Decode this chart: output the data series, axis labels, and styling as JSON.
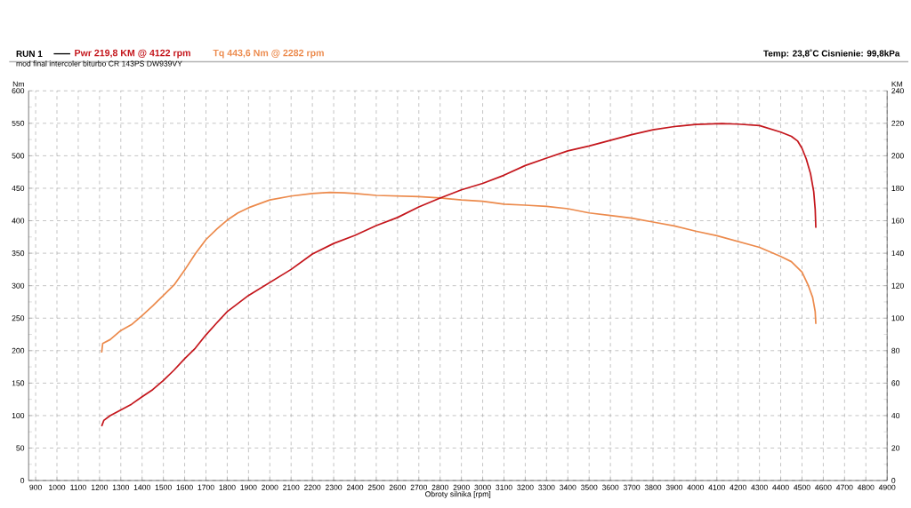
{
  "chart_data": {
    "type": "line",
    "subtitle": "mod final intercoler biturbo CR 143PS DW939VY",
    "annotations": [
      "RUN 1",
      "Temp: 23,8˚C   Cisnienie: 99,8kPa"
    ],
    "xlabel": "Obroty silnika [rpm]",
    "ylabel": "Nm",
    "y2label": "KM",
    "xlim": [
      867,
      4900
    ],
    "xticks": [
      900,
      1000,
      1100,
      1200,
      1300,
      1400,
      1500,
      1600,
      1700,
      1800,
      1900,
      2000,
      2100,
      2200,
      2300,
      2400,
      2500,
      2600,
      2700,
      2800,
      2900,
      3000,
      3100,
      3200,
      3300,
      3400,
      3500,
      3600,
      3700,
      3800,
      3900,
      4000,
      4100,
      4200,
      4300,
      4400,
      4500,
      4600,
      4700,
      4800,
      4900
    ],
    "ylim": [
      0,
      600
    ],
    "yticks": [
      0,
      50,
      100,
      150,
      200,
      250,
      300,
      350,
      400,
      450,
      500,
      550,
      600
    ],
    "y2lim": [
      0,
      240
    ],
    "y2ticks": [
      0,
      20,
      40,
      60,
      80,
      100,
      120,
      140,
      160,
      180,
      200,
      220,
      240
    ],
    "grid": true,
    "marker": "none",
    "series": [
      {
        "name": "Pwr  219,8 KM @ 4122 rpm",
        "color": "#c4161c",
        "axis": "y2",
        "x": [
          1210,
          1220,
          1250,
          1300,
          1350,
          1400,
          1450,
          1500,
          1550,
          1600,
          1650,
          1700,
          1750,
          1800,
          1900,
          2000,
          2100,
          2200,
          2300,
          2400,
          2500,
          2600,
          2700,
          2800,
          2900,
          3000,
          3100,
          3200,
          3300,
          3400,
          3500,
          3600,
          3700,
          3800,
          3900,
          4000,
          4122,
          4200,
          4300,
          4400,
          4450,
          4480,
          4500,
          4520,
          4540,
          4555,
          4562,
          4565
        ],
        "values": [
          33.5,
          37,
          40,
          43.5,
          47,
          51.6,
          56,
          61.6,
          68,
          75,
          81.5,
          89.7,
          97,
          104,
          114,
          122,
          130,
          139.5,
          146,
          151,
          157,
          162,
          168.5,
          174,
          179,
          183,
          188,
          194,
          198.6,
          203,
          206,
          209.5,
          213,
          216,
          218,
          219.3,
          219.8,
          219.5,
          218.6,
          214.6,
          212,
          209,
          204.6,
          198,
          189,
          178,
          167,
          155.6
        ]
      },
      {
        "name": "Tq 443,6 Nm @ 2282 rpm",
        "color": "#ec8a4c",
        "x": [
          1210,
          1215,
          1250,
          1300,
          1350,
          1400,
          1450,
          1500,
          1550,
          1600,
          1650,
          1700,
          1750,
          1800,
          1850,
          1900,
          2000,
          2100,
          2200,
          2282,
          2350,
          2400,
          2500,
          2600,
          2700,
          2800,
          2900,
          3000,
          3100,
          3200,
          3300,
          3400,
          3500,
          3600,
          3700,
          3800,
          3900,
          4000,
          4100,
          4200,
          4300,
          4400,
          4450,
          4500,
          4530,
          4550,
          4562,
          4565
        ],
        "values": [
          197,
          211,
          217,
          231,
          240,
          254,
          269,
          285,
          301,
          324,
          349,
          371,
          387,
          401,
          412,
          420,
          432,
          438,
          442,
          443.6,
          443,
          442,
          439,
          438,
          437,
          435,
          432,
          430,
          425.6,
          424,
          422,
          418.5,
          412,
          408,
          404,
          398,
          392,
          384,
          377,
          368,
          359,
          345,
          337,
          321,
          300,
          282,
          260,
          241
        ]
      }
    ]
  }
}
